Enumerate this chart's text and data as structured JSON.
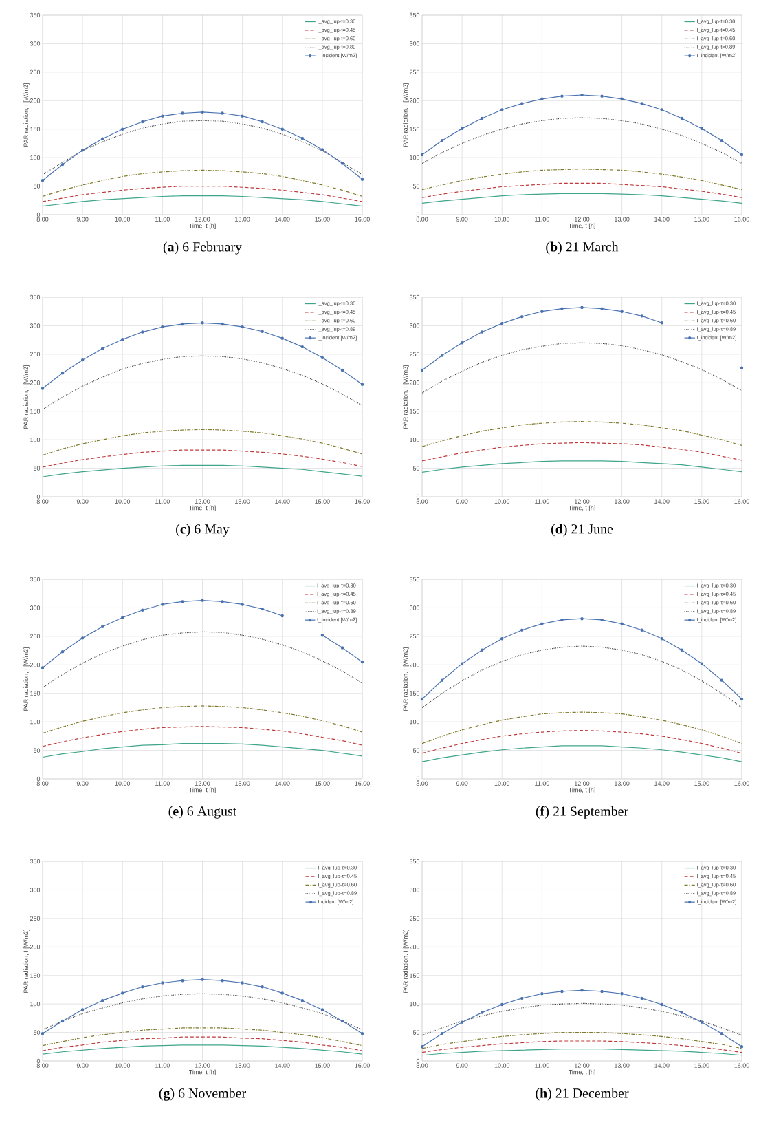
{
  "chart_data": [
    {
      "type": "line",
      "title": "(**a**) 6 February",
      "xlabel": "Time, t [h]",
      "ylabel": "PAR radiation, I [W/m2]",
      "grid": true,
      "legend": "top right",
      "xlim": [
        8,
        16
      ],
      "ylim": [
        0,
        350
      ],
      "xticks": [
        {
          "value": 8,
          "label": "8.00"
        },
        {
          "value": 9,
          "label": "9.00"
        },
        {
          "value": 10,
          "label": "10.00"
        },
        {
          "value": 11,
          "label": "11.00"
        },
        {
          "value": 12,
          "label": "12.00"
        },
        {
          "value": 13,
          "label": "13.00"
        },
        {
          "value": 14,
          "label": "14.00"
        },
        {
          "value": 15,
          "label": "15.00"
        },
        {
          "value": 16,
          "label": "16.00"
        }
      ],
      "yticks": [
        0,
        50,
        100,
        150,
        200,
        250,
        300,
        350
      ],
      "x": [
        8,
        8.5,
        9,
        9.5,
        10,
        10.5,
        11,
        11.5,
        12,
        12.5,
        13,
        13.5,
        14,
        14.5,
        15,
        15.5,
        16
      ],
      "series": [
        {
          "name": "I_avg_lup-t=0.30",
          "color": "#3fa58a",
          "line_style": "solid",
          "marker": "none",
          "values": [
            15,
            19,
            23,
            26,
            28,
            30,
            32,
            33,
            33,
            33,
            32,
            30,
            28,
            26,
            23,
            19,
            15
          ]
        },
        {
          "name": "I_avg_lup-t=0.45",
          "color": "#c0393b",
          "line_style": "dashed",
          "marker": "none",
          "values": [
            23,
            29,
            35,
            39,
            43,
            46,
            48,
            50,
            50,
            50,
            48,
            46,
            43,
            39,
            35,
            29,
            23
          ]
        },
        {
          "name": "I_avg_lup-t=0.60",
          "color": "#7f7a2a",
          "line_style": "dashdot",
          "marker": "none",
          "values": [
            32,
            43,
            52,
            60,
            67,
            72,
            75,
            77,
            78,
            77,
            75,
            72,
            67,
            60,
            52,
            43,
            32
          ]
        },
        {
          "name": "I_avg_lup-t=0.89",
          "color": "#404040",
          "line_style": "dotted",
          "marker": "none",
          "values": [
            70,
            92,
            112,
            128,
            141,
            152,
            159,
            164,
            165,
            164,
            159,
            152,
            141,
            128,
            112,
            92,
            70
          ]
        },
        {
          "name": "I_incident [W/m2]",
          "color": "#4a72b0",
          "line_style": "solid",
          "marker": "circle",
          "values": [
            60,
            88,
            113,
            133,
            150,
            163,
            173,
            178,
            180,
            178,
            173,
            163,
            150,
            134,
            114,
            90,
            62
          ]
        }
      ]
    },
    {
      "type": "line",
      "title": "(**b**) 21 March",
      "xlabel": "Time, t [h]",
      "ylabel": "PAR radiation, I [W/m2]",
      "grid": true,
      "legend": "top right",
      "xlim": [
        8,
        16
      ],
      "ylim": [
        0,
        350
      ],
      "xticks": [
        {
          "value": 8,
          "label": "8.00"
        },
        {
          "value": 9,
          "label": "9.00"
        },
        {
          "value": 10,
          "label": "10.00"
        },
        {
          "value": 11,
          "label": "11.00"
        },
        {
          "value": 12,
          "label": "12.00"
        },
        {
          "value": 13,
          "label": "13.00"
        },
        {
          "value": 14,
          "label": "14.00"
        },
        {
          "value": 15,
          "label": "15.00"
        },
        {
          "value": 16,
          "label": "16.00"
        }
      ],
      "yticks": [
        0,
        50,
        100,
        150,
        200,
        250,
        300,
        350
      ],
      "x": [
        8,
        8.5,
        9,
        9.5,
        10,
        10.5,
        11,
        11.5,
        12,
        12.5,
        13,
        13.5,
        14,
        14.5,
        15,
        15.5,
        16
      ],
      "series": [
        {
          "name": "I_avg_lup-t=0.30",
          "color": "#3fa58a",
          "line_style": "solid",
          "marker": "none",
          "values": [
            20,
            24,
            27,
            30,
            33,
            35,
            36,
            37,
            37,
            37,
            36,
            35,
            33,
            30,
            27,
            24,
            20
          ]
        },
        {
          "name": "I_avg_lup-t=0.45",
          "color": "#c0393b",
          "line_style": "dashed",
          "marker": "none",
          "values": [
            30,
            36,
            41,
            45,
            49,
            51,
            53,
            55,
            55,
            55,
            53,
            51,
            49,
            45,
            41,
            36,
            30
          ]
        },
        {
          "name": "I_avg_lup-t=0.60",
          "color": "#7f7a2a",
          "line_style": "dashdot",
          "marker": "none",
          "values": [
            44,
            52,
            60,
            66,
            71,
            75,
            78,
            79,
            80,
            79,
            78,
            75,
            71,
            66,
            60,
            52,
            44
          ]
        },
        {
          "name": "I_avg_lup-t=0.89",
          "color": "#404040",
          "line_style": "dotted",
          "marker": "none",
          "values": [
            90,
            109,
            125,
            139,
            150,
            159,
            165,
            169,
            170,
            169,
            165,
            159,
            150,
            139,
            125,
            109,
            90
          ]
        },
        {
          "name": "I_incident [W/m2]",
          "color": "#4a72b0",
          "line_style": "solid",
          "marker": "circle",
          "values": [
            105,
            130,
            151,
            169,
            184,
            195,
            203,
            208,
            210,
            208,
            203,
            195,
            184,
            169,
            151,
            130,
            105
          ]
        }
      ]
    },
    {
      "type": "line",
      "title": "(**c**) 6 May",
      "xlabel": "Time, t [h]",
      "ylabel": "PAR radiation, I [W/m2]",
      "grid": true,
      "legend": "top right",
      "xlim": [
        8,
        16
      ],
      "ylim": [
        0,
        350
      ],
      "xticks": [
        {
          "value": 8,
          "label": "8.00"
        },
        {
          "value": 9,
          "label": "9.00"
        },
        {
          "value": 10,
          "label": "10.00"
        },
        {
          "value": 11,
          "label": "11.00"
        },
        {
          "value": 12,
          "label": "12.00"
        },
        {
          "value": 13,
          "label": "13.00"
        },
        {
          "value": 14,
          "label": "14.00"
        },
        {
          "value": 15,
          "label": "15.00"
        },
        {
          "value": 16,
          "label": "16.00"
        }
      ],
      "yticks": [
        0,
        50,
        100,
        150,
        200,
        250,
        300,
        350
      ],
      "x": [
        8,
        8.5,
        9,
        9.5,
        10,
        10.5,
        11,
        11.5,
        12,
        12.5,
        13,
        13.5,
        14,
        14.5,
        15,
        15.5,
        16
      ],
      "series": [
        {
          "name": "I_avg_lup-t=0.30",
          "color": "#3fa58a",
          "line_style": "solid",
          "marker": "none",
          "values": [
            35,
            40,
            44,
            47,
            50,
            52,
            54,
            55,
            55,
            55,
            54,
            52,
            50,
            48,
            44,
            40,
            36
          ]
        },
        {
          "name": "I_avg_lup-t=0.45",
          "color": "#c0393b",
          "line_style": "dashed",
          "marker": "none",
          "values": [
            52,
            59,
            65,
            70,
            74,
            78,
            80,
            82,
            82,
            82,
            80,
            78,
            75,
            71,
            66,
            60,
            53
          ]
        },
        {
          "name": "I_avg_lup-t=0.60",
          "color": "#7f7a2a",
          "line_style": "dashdot",
          "marker": "none",
          "values": [
            73,
            84,
            93,
            100,
            107,
            112,
            115,
            117,
            118,
            117,
            115,
            112,
            107,
            101,
            94,
            85,
            75
          ]
        },
        {
          "name": "I_avg_lup-t=0.89",
          "color": "#404040",
          "line_style": "dotted",
          "marker": "none",
          "values": [
            153,
            175,
            194,
            210,
            224,
            234,
            241,
            246,
            247,
            246,
            242,
            235,
            225,
            213,
            198,
            180,
            160
          ]
        },
        {
          "name": "I_incident [W/m2]",
          "color": "#4a72b0",
          "line_style": "solid",
          "marker": "circle",
          "values": [
            190,
            217,
            240,
            260,
            276,
            289,
            298,
            303,
            305,
            303,
            298,
            290,
            278,
            263,
            244,
            222,
            197
          ]
        }
      ]
    },
    {
      "type": "line",
      "title": "(**d**) 21 June",
      "xlabel": "Time, t [h]",
      "ylabel": "PAR radiation, I [W/m2]",
      "grid": true,
      "legend": "top right",
      "xlim": [
        8,
        16
      ],
      "ylim": [
        0,
        350
      ],
      "xticks": [
        {
          "value": 8,
          "label": "8.00"
        },
        {
          "value": 9,
          "label": "9.00"
        },
        {
          "value": 10,
          "label": "10.00"
        },
        {
          "value": 11,
          "label": "11.00"
        },
        {
          "value": 12,
          "label": "12.00"
        },
        {
          "value": 13,
          "label": "13.00"
        },
        {
          "value": 14,
          "label": "14.00"
        },
        {
          "value": 15,
          "label": "15.00"
        },
        {
          "value": 16,
          "label": "16.00"
        }
      ],
      "yticks": [
        0,
        50,
        100,
        150,
        200,
        250,
        300,
        350
      ],
      "x": [
        8,
        8.5,
        9,
        9.5,
        10,
        10.5,
        11,
        11.5,
        12,
        12.5,
        13,
        13.5,
        14,
        14.5,
        15,
        15.5,
        16
      ],
      "series": [
        {
          "name": "I_avg_lup-τ=0.30",
          "color": "#3fa58a",
          "line_style": "solid",
          "marker": "none",
          "values": [
            43,
            48,
            52,
            55,
            58,
            60,
            62,
            63,
            63,
            63,
            62,
            60,
            58,
            56,
            52,
            48,
            44
          ]
        },
        {
          "name": "I_avg_lup-τ=0.45",
          "color": "#c0393b",
          "line_style": "dashed",
          "marker": "none",
          "values": [
            63,
            70,
            77,
            82,
            87,
            90,
            93,
            94,
            95,
            94,
            93,
            91,
            87,
            83,
            78,
            71,
            64
          ]
        },
        {
          "name": "I_avg_lup-τ=0.60",
          "color": "#7f7a2a",
          "line_style": "dashdot",
          "marker": "none",
          "values": [
            88,
            98,
            107,
            115,
            121,
            126,
            129,
            131,
            132,
            131,
            129,
            126,
            121,
            116,
            108,
            100,
            90
          ]
        },
        {
          "name": "I_avg_lup-τ=0.89",
          "color": "#404040",
          "line_style": "dotted",
          "marker": "none",
          "values": [
            182,
            203,
            220,
            236,
            248,
            258,
            264,
            269,
            270,
            269,
            265,
            258,
            249,
            237,
            223,
            206,
            186
          ]
        },
        {
          "name": "I_incident [W/m2]",
          "color": "#4a72b0",
          "line_style": "solid",
          "marker": "circle",
          "values": [
            222,
            248,
            270,
            289,
            304,
            316,
            325,
            330,
            332,
            330,
            325,
            317,
            305,
            null,
            null,
            null,
            226
          ]
        }
      ]
    },
    {
      "type": "line",
      "title": "(**e**) 6 August",
      "xlabel": "Time, t [h]",
      "ylabel": "PAR radiation, I [W/m2]",
      "grid": true,
      "legend": "top right",
      "xlim": [
        8,
        16
      ],
      "ylim": [
        0,
        350
      ],
      "xticks": [
        {
          "value": 8,
          "label": "8.00"
        },
        {
          "value": 9,
          "label": "9.00"
        },
        {
          "value": 10,
          "label": "10.00"
        },
        {
          "value": 11,
          "label": "11.00"
        },
        {
          "value": 12,
          "label": "12.00"
        },
        {
          "value": 13,
          "label": "13.00"
        },
        {
          "value": 14,
          "label": "14.00"
        },
        {
          "value": 15,
          "label": "15.00"
        },
        {
          "value": 16,
          "label": "16.00"
        }
      ],
      "yticks": [
        0,
        50,
        100,
        150,
        200,
        250,
        300,
        350
      ],
      "x": [
        8,
        8.5,
        9,
        9.5,
        10,
        10.5,
        11,
        11.5,
        12,
        12.5,
        13,
        13.5,
        14,
        14.5,
        15,
        15.5,
        16
      ],
      "series": [
        {
          "name": "I_avg_lup-τ=0.30",
          "color": "#3fa58a",
          "line_style": "solid",
          "marker": "none",
          "values": [
            38,
            44,
            48,
            53,
            56,
            59,
            60,
            62,
            62,
            62,
            61,
            59,
            56,
            53,
            50,
            45,
            40
          ]
        },
        {
          "name": "I_avg_lup-τ=0.45",
          "color": "#c0393b",
          "line_style": "dashed",
          "marker": "none",
          "values": [
            57,
            65,
            72,
            78,
            83,
            87,
            90,
            91,
            92,
            91,
            90,
            87,
            84,
            79,
            73,
            67,
            59
          ]
        },
        {
          "name": "I_avg_lup-τ=0.60",
          "color": "#7f7a2a",
          "line_style": "dashdot",
          "marker": "none",
          "values": [
            80,
            91,
            101,
            109,
            116,
            121,
            125,
            127,
            128,
            127,
            125,
            121,
            116,
            110,
            102,
            93,
            82
          ]
        },
        {
          "name": "I_avg_lup-τ=0.89",
          "color": "#404040",
          "line_style": "dotted",
          "marker": "none",
          "values": [
            160,
            183,
            203,
            220,
            233,
            244,
            252,
            256,
            258,
            257,
            252,
            245,
            235,
            223,
            207,
            189,
            168
          ]
        },
        {
          "name": "I_Incident [W/m2]",
          "color": "#4a72b0",
          "line_style": "solid",
          "marker": "circle",
          "values": [
            195,
            223,
            247,
            267,
            283,
            296,
            306,
            311,
            313,
            311,
            306,
            298,
            286,
            null,
            252,
            230,
            205
          ]
        }
      ]
    },
    {
      "type": "line",
      "title": "(**f**) 21 September",
      "xlabel": "Time, t [h]",
      "ylabel": "PAR radiation, I [W/m2]",
      "grid": true,
      "legend": "top right",
      "xlim": [
        8,
        16
      ],
      "ylim": [
        0,
        350
      ],
      "xticks": [
        {
          "value": 8,
          "label": "8.00"
        },
        {
          "value": 9,
          "label": "9.00"
        },
        {
          "value": 10,
          "label": "10.00"
        },
        {
          "value": 11,
          "label": "11.00"
        },
        {
          "value": 12,
          "label": "12.00"
        },
        {
          "value": 13,
          "label": "13.00"
        },
        {
          "value": 14,
          "label": "14.00"
        },
        {
          "value": 15,
          "label": "15.00"
        },
        {
          "value": 16,
          "label": "16.00"
        }
      ],
      "yticks": [
        0,
        50,
        100,
        150,
        200,
        250,
        300,
        350
      ],
      "x": [
        8,
        8.5,
        9,
        9.5,
        10,
        10.5,
        11,
        11.5,
        12,
        12.5,
        13,
        13.5,
        14,
        14.5,
        15,
        15.5,
        16
      ],
      "series": [
        {
          "name": "I_avg_lup-τ=0.30",
          "color": "#3fa58a",
          "line_style": "solid",
          "marker": "none",
          "values": [
            30,
            37,
            42,
            47,
            51,
            54,
            56,
            58,
            58,
            58,
            56,
            54,
            51,
            47,
            42,
            37,
            30
          ]
        },
        {
          "name": "I_avg_lup-τ=0.45",
          "color": "#c0393b",
          "line_style": "dashed",
          "marker": "none",
          "values": [
            45,
            54,
            62,
            69,
            75,
            79,
            82,
            84,
            85,
            84,
            82,
            79,
            75,
            69,
            62,
            54,
            45
          ]
        },
        {
          "name": "I_avg_lup-τ=0.60",
          "color": "#7f7a2a",
          "line_style": "dashdot",
          "marker": "none",
          "values": [
            62,
            75,
            86,
            95,
            103,
            109,
            114,
            116,
            117,
            116,
            114,
            109,
            103,
            95,
            86,
            75,
            62
          ]
        },
        {
          "name": "I_avg_lup-τ=0.89",
          "color": "#404040",
          "line_style": "dotted",
          "marker": "none",
          "values": [
            125,
            150,
            172,
            191,
            206,
            218,
            226,
            231,
            233,
            231,
            226,
            218,
            206,
            191,
            172,
            150,
            125
          ]
        },
        {
          "name": "I_incident [W/m2]",
          "color": "#4a72b0",
          "line_style": "solid",
          "marker": "circle",
          "values": [
            140,
            173,
            202,
            226,
            246,
            261,
            272,
            279,
            281,
            279,
            272,
            261,
            246,
            226,
            202,
            173,
            140
          ]
        }
      ]
    },
    {
      "type": "line",
      "title": "(**g**) 6 November",
      "xlabel": "Time, t [h]",
      "ylabel": "PAR radiation, I [W/m2]",
      "grid": true,
      "legend": "top right",
      "xlim": [
        8,
        16
      ],
      "ylim": [
        0,
        350
      ],
      "xticks": [
        {
          "value": 8,
          "label": "8.00"
        },
        {
          "value": 9,
          "label": "9.00"
        },
        {
          "value": 10,
          "label": "10.00"
        },
        {
          "value": 11,
          "label": "11.00"
        },
        {
          "value": 12,
          "label": "12.00"
        },
        {
          "value": 13,
          "label": "13.00"
        },
        {
          "value": 14,
          "label": "14.00"
        },
        {
          "value": 15,
          "label": "15.00"
        },
        {
          "value": 16,
          "label": "16.00"
        }
      ],
      "yticks": [
        0,
        50,
        100,
        150,
        200,
        250,
        300,
        350
      ],
      "x": [
        8,
        8.5,
        9,
        9.5,
        10,
        10.5,
        11,
        11.5,
        12,
        12.5,
        13,
        13.5,
        14,
        14.5,
        15,
        15.5,
        16
      ],
      "series": [
        {
          "name": "I_avg_lup-τ=0.30",
          "color": "#3fa58a",
          "line_style": "solid",
          "marker": "none",
          "values": [
            12,
            16,
            19,
            22,
            24,
            26,
            27,
            28,
            28,
            28,
            27,
            26,
            24,
            22,
            19,
            16,
            12
          ]
        },
        {
          "name": "I_avg_lup-τ=0.45",
          "color": "#c0393b",
          "line_style": "dashed",
          "marker": "none",
          "values": [
            18,
            24,
            28,
            33,
            36,
            39,
            40,
            42,
            42,
            42,
            40,
            39,
            36,
            33,
            28,
            24,
            18
          ]
        },
        {
          "name": "I_avg_lup-τ=0.60",
          "color": "#7f7a2a",
          "line_style": "dashdot",
          "marker": "none",
          "values": [
            27,
            34,
            41,
            46,
            50,
            54,
            56,
            58,
            58,
            58,
            56,
            54,
            50,
            46,
            41,
            34,
            27
          ]
        },
        {
          "name": "I_avg_lup-τ=0.89",
          "color": "#404040",
          "line_style": "dotted",
          "marker": "none",
          "values": [
            55,
            70,
            83,
            93,
            102,
            109,
            114,
            117,
            118,
            117,
            114,
            109,
            102,
            93,
            83,
            70,
            55
          ]
        },
        {
          "name": "Incident [W/m2]",
          "color": "#4a72b0",
          "line_style": "solid",
          "marker": "circle",
          "values": [
            48,
            70,
            90,
            106,
            119,
            130,
            137,
            141,
            143,
            141,
            137,
            130,
            119,
            106,
            90,
            70,
            48
          ]
        }
      ]
    },
    {
      "type": "line",
      "title": "(**h**) 21 December",
      "xlabel": "Time, t [h]",
      "ylabel": "PAR radiation, I [W/m2]",
      "grid": true,
      "legend": "top right",
      "xlim": [
        8,
        16
      ],
      "ylim": [
        0,
        350
      ],
      "xticks": [
        {
          "value": 8,
          "label": "8.00"
        },
        {
          "value": 9,
          "label": "9.00"
        },
        {
          "value": 10,
          "label": "10.00"
        },
        {
          "value": 11,
          "label": "11.00"
        },
        {
          "value": 12,
          "label": "12.00"
        },
        {
          "value": 13,
          "label": "13.00"
        },
        {
          "value": 14,
          "label": "14.00"
        },
        {
          "value": 15,
          "label": "15.00"
        },
        {
          "value": 16,
          "label": "16.00"
        }
      ],
      "yticks": [
        0,
        50,
        100,
        150,
        200,
        250,
        300,
        350
      ],
      "x": [
        8,
        8.5,
        9,
        9.5,
        10,
        10.5,
        11,
        11.5,
        12,
        12.5,
        13,
        13.5,
        14,
        14.5,
        15,
        15.5,
        16
      ],
      "series": [
        {
          "name": "I_avg_lup-τ=0.30",
          "color": "#3fa58a",
          "line_style": "solid",
          "marker": "none",
          "values": [
            10,
            13,
            15,
            17,
            18,
            19,
            20,
            21,
            21,
            21,
            20,
            19,
            18,
            17,
            15,
            13,
            10
          ]
        },
        {
          "name": "I_avg_lup-τ=0.45",
          "color": "#c0393b",
          "line_style": "dashed",
          "marker": "none",
          "values": [
            15,
            20,
            24,
            27,
            30,
            32,
            34,
            35,
            35,
            35,
            34,
            32,
            30,
            27,
            24,
            20,
            15
          ]
        },
        {
          "name": "I_avg_lup-τ=0.60",
          "color": "#7f7a2a",
          "line_style": "dashdot",
          "marker": "none",
          "values": [
            22,
            29,
            34,
            39,
            43,
            46,
            48,
            50,
            50,
            50,
            48,
            46,
            43,
            39,
            34,
            29,
            22
          ]
        },
        {
          "name": "I_avg_lup-τ=0.89",
          "color": "#404040",
          "line_style": "dotted",
          "marker": "none",
          "values": [
            45,
            58,
            70,
            79,
            87,
            93,
            98,
            100,
            101,
            100,
            98,
            93,
            87,
            79,
            70,
            58,
            45
          ]
        },
        {
          "name": "I_incident [W/m2]",
          "color": "#4a72b0",
          "line_style": "solid",
          "marker": "circle",
          "values": [
            25,
            48,
            68,
            85,
            99,
            110,
            118,
            122,
            124,
            122,
            118,
            110,
            99,
            85,
            68,
            48,
            25
          ]
        }
      ]
    }
  ]
}
